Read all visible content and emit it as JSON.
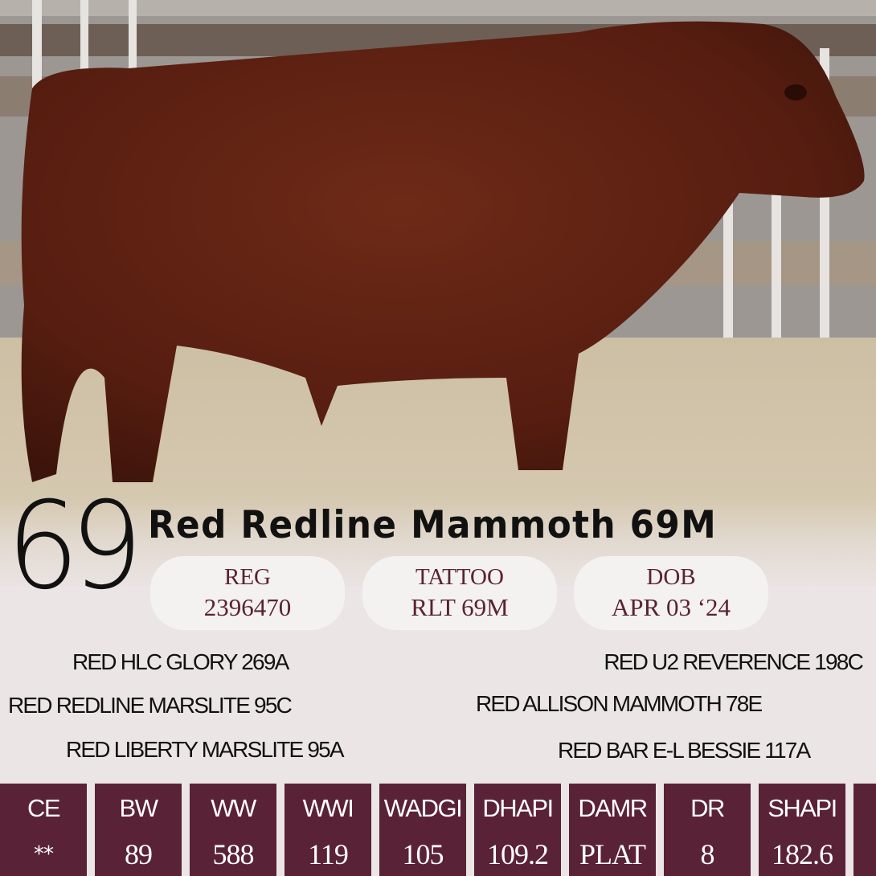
{
  "lot_number": "69",
  "animal_name": "Red Redline Mammoth 69M",
  "info": [
    {
      "label": "REG",
      "value": "2396470"
    },
    {
      "label": "TATTOO",
      "value": "RLT 69M"
    },
    {
      "label": "DOB",
      "value": "APR 03 ‘24"
    }
  ],
  "pedigree": {
    "sire_side": {
      "sire_sire": "RED HLC GLORY 269A",
      "sire": "RED REDLINE MARSLITE 95C",
      "sire_dam": "RED LIBERTY MARSLITE 95A"
    },
    "dam_side": {
      "dam_sire": "RED U2 REVERENCE 198C",
      "dam": "RED ALLISON MAMMOTH 78E",
      "dam_dam": "RED BAR E-L BESSIE 117A"
    }
  },
  "stats": [
    {
      "label": "CE",
      "value": "**"
    },
    {
      "label": "BW",
      "value": "89"
    },
    {
      "label": "WW",
      "value": "588"
    },
    {
      "label": "WWI",
      "value": "119"
    },
    {
      "label": "WADGI",
      "value": "105"
    },
    {
      "label": "DHAPI",
      "value": "109.2"
    },
    {
      "label": "DAMR",
      "value": "PLAT"
    },
    {
      "label": "DR",
      "value": "8"
    },
    {
      "label": "SHAPI",
      "value": "182.6"
    }
  ],
  "colors": {
    "accent": "#5a2236",
    "panel": "#ebe5e6",
    "pill": "#f4f1f1"
  }
}
